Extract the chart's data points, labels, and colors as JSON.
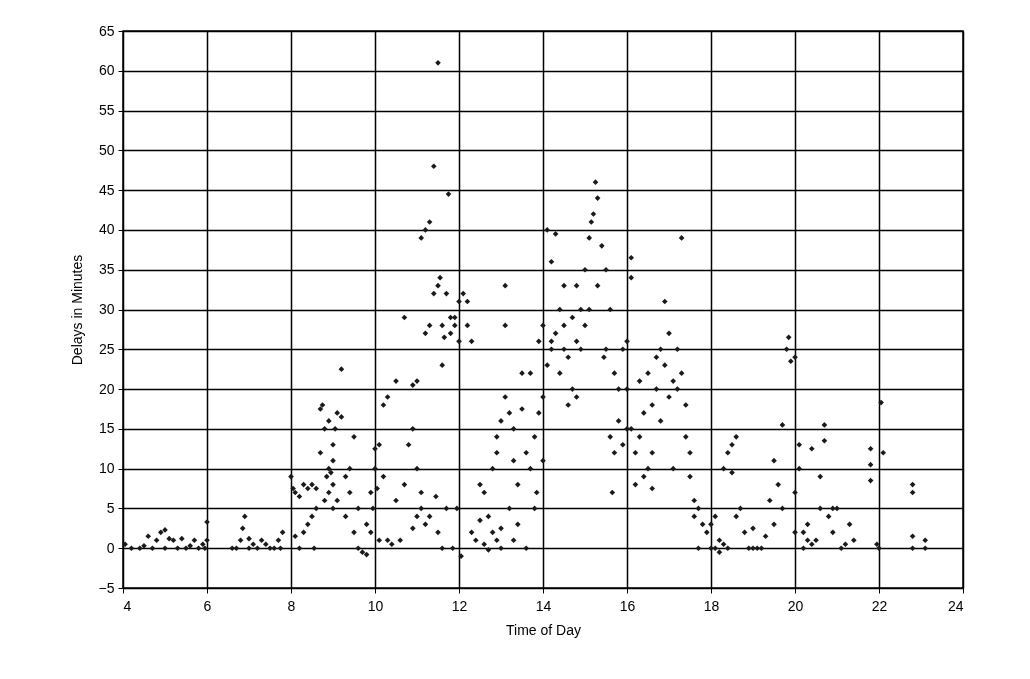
{
  "chart_data": {
    "type": "scatter",
    "xlabel": "Time of Day",
    "ylabel": "Delays in Minutes",
    "xlim": [
      4,
      24
    ],
    "xticks": [
      4,
      6,
      8,
      10,
      12,
      14,
      16,
      18,
      20,
      22,
      24
    ],
    "ylim": [
      -5,
      65
    ],
    "yticks": [
      -5,
      0,
      5,
      10,
      15,
      20,
      25,
      30,
      35,
      40,
      45,
      50,
      55,
      60,
      65
    ],
    "grid": true,
    "marker": "diamond",
    "series": [
      {
        "color": "#1a1a1a",
        "x": [
          4.05,
          4.2,
          4.4,
          4.5,
          4.6,
          4.7,
          4.8,
          4.9,
          5.0,
          5.0,
          5.1,
          5.2,
          5.3,
          5.4,
          5.5,
          5.6,
          5.7,
          5.8,
          5.9,
          6.0,
          6.0,
          5.95,
          6.7,
          6.8,
          6.85,
          6.9,
          7.0,
          7.1,
          7.2,
          7.3,
          7.4,
          7.5,
          7.6,
          7.7,
          7.8,
          7.75,
          6.6,
          7.0,
          8.0,
          8.05,
          8.1,
          8.1,
          8.2,
          8.2,
          8.3,
          8.3,
          8.4,
          8.4,
          8.5,
          8.5,
          8.55,
          8.6,
          8.6,
          8.7,
          8.75,
          8.7,
          8.8,
          8.8,
          8.85,
          8.9,
          8.9,
          8.9,
          9.0,
          9.0,
          9.0,
          9.05,
          9.1,
          9.1,
          9.2,
          9.2,
          9.3,
          9.3,
          9.4,
          9.4,
          9.5,
          9.5,
          9.6,
          9.6,
          9.7,
          9.8,
          9.8,
          9.9,
          9.9,
          10.0,
          10.0,
          10.05,
          10.1,
          9.95,
          9.0,
          8.95,
          10.2,
          10.2,
          10.3,
          10.3,
          10.4,
          10.5,
          10.5,
          10.6,
          10.7,
          10.7,
          10.8,
          10.9,
          10.9,
          11.0,
          11.0,
          11.1,
          11.1,
          11.2,
          11.2,
          11.3,
          11.3,
          11.4,
          11.4,
          11.45,
          11.5,
          11.5,
          11.5,
          11.55,
          11.6,
          11.6,
          11.65,
          11.7,
          11.7,
          11.75,
          11.8,
          11.8,
          11.85,
          11.9,
          11.9,
          11.95,
          12.0,
          12.0,
          12.05,
          12.1,
          12.2,
          12.2,
          12.3,
          12.3,
          11.2,
          11.3,
          10.1,
          10.9,
          11.0,
          11.1,
          11.6,
          12.4,
          12.5,
          12.5,
          12.6,
          12.6,
          12.7,
          12.7,
          12.8,
          12.8,
          12.9,
          12.9,
          13.0,
          13.0,
          13.1,
          13.1,
          13.1,
          13.2,
          13.2,
          13.3,
          13.3,
          13.4,
          13.4,
          13.5,
          13.5,
          13.6,
          13.6,
          13.7,
          13.7,
          13.8,
          13.8,
          13.9,
          13.9,
          14.0,
          14.0,
          14.0,
          13.85,
          13.0,
          12.9,
          13.3,
          14.1,
          14.1,
          14.2,
          14.2,
          14.3,
          14.3,
          14.4,
          14.4,
          14.5,
          14.5,
          14.6,
          14.6,
          14.7,
          14.7,
          14.8,
          14.8,
          14.9,
          14.9,
          15.0,
          15.0,
          15.1,
          15.1,
          15.15,
          15.2,
          15.25,
          15.3,
          15.3,
          15.4,
          15.45,
          15.5,
          15.6,
          15.6,
          15.65,
          15.7,
          15.7,
          15.8,
          15.8,
          15.9,
          15.9,
          16.0,
          16.0,
          15.5,
          14.5,
          14.2,
          14.8,
          16.1,
          16.1,
          16.1,
          16.2,
          16.2,
          16.3,
          16.3,
          16.4,
          16.4,
          16.5,
          16.5,
          16.6,
          16.6,
          16.7,
          16.7,
          16.8,
          16.8,
          16.9,
          16.9,
          17.0,
          17.0,
          17.1,
          17.1,
          17.2,
          17.2,
          17.3,
          17.3,
          17.4,
          17.4,
          17.5,
          17.5,
          17.6,
          17.6,
          17.7,
          17.7,
          17.8,
          17.9,
          18.0,
          16.6,
          16.0,
          18.1,
          18.1,
          18.2,
          18.2,
          18.3,
          18.3,
          18.4,
          18.5,
          18.5,
          18.6,
          18.6,
          18.7,
          18.8,
          18.9,
          19.0,
          19.1,
          19.2,
          19.3,
          19.4,
          19.5,
          19.5,
          19.6,
          19.7,
          19.7,
          19.8,
          19.85,
          19.9,
          20.0,
          20.0,
          20.0,
          18.4,
          18.0,
          19.0,
          20.1,
          20.1,
          20.2,
          20.2,
          20.3,
          20.4,
          20.4,
          20.5,
          20.6,
          20.6,
          20.7,
          20.7,
          20.8,
          20.9,
          20.9,
          21.0,
          21.1,
          21.2,
          21.3,
          21.4,
          21.8,
          21.8,
          21.8,
          22.0,
          22.05,
          22.1,
          21.95,
          20.3,
          22.8,
          22.8,
          22.8,
          23.1,
          23.1,
          22.8
        ],
        "values": [
          0.5,
          0,
          0,
          0.3,
          1.5,
          0,
          1,
          2,
          0,
          2.3,
          1.2,
          1,
          0,
          1.2,
          0,
          0.3,
          1,
          0,
          0.5,
          1,
          3.3,
          0,
          0,
          1,
          2.5,
          4,
          0,
          0.5,
          0,
          1,
          0.5,
          0,
          0,
          1,
          2,
          0,
          0,
          1.2,
          9,
          7.5,
          7,
          1.5,
          0,
          6.5,
          2,
          8,
          3,
          7.5,
          4,
          8,
          0,
          5,
          7.5,
          17.5,
          18,
          12,
          6,
          15,
          9,
          7,
          10,
          16,
          11,
          13,
          8,
          15,
          17,
          6,
          22.5,
          16.5,
          4,
          9,
          10,
          7,
          14,
          2,
          5,
          0,
          -0.5,
          3,
          -0.8,
          2,
          7,
          10,
          12.5,
          7.5,
          13,
          5,
          5,
          9.5,
          18,
          9,
          19,
          1,
          0.5,
          21,
          6,
          1,
          29,
          8,
          13,
          15,
          20.5,
          21,
          10,
          39,
          5,
          40,
          27,
          41,
          28,
          48,
          32,
          6.5,
          61,
          33,
          2,
          34,
          28,
          23,
          26.5,
          32,
          5,
          44.5,
          29,
          27,
          0,
          29,
          28,
          5,
          31,
          26,
          -1,
          32,
          31,
          28,
          26,
          2,
          3,
          4,
          1,
          2.5,
          4,
          7,
          0,
          1,
          3.5,
          8,
          7,
          0.5,
          4,
          -0.2,
          10,
          2,
          14,
          1,
          16,
          0,
          33,
          28,
          19,
          17,
          5,
          11,
          1,
          8,
          3,
          17.5,
          22,
          12,
          0,
          22,
          10,
          14,
          5,
          17,
          26,
          28,
          19,
          11,
          7,
          2.5,
          12,
          15,
          40,
          23,
          25,
          36,
          39.5,
          27,
          30,
          22,
          25,
          33,
          24,
          18,
          29,
          20,
          33,
          26,
          30,
          25,
          35,
          28,
          39,
          30,
          41,
          42,
          46,
          44,
          33,
          38,
          24,
          35,
          30,
          14,
          7,
          22,
          12,
          20,
          16,
          25,
          13,
          26,
          20,
          25,
          28,
          26,
          19,
          36.5,
          34,
          15,
          12,
          8,
          14,
          21,
          9,
          17,
          10,
          22,
          18,
          12,
          20,
          24,
          25,
          16,
          31,
          23,
          27,
          19,
          21,
          10,
          25,
          20,
          39,
          22,
          18,
          14,
          12,
          9,
          6,
          4,
          5,
          0,
          3,
          2,
          3,
          7.5,
          15,
          0,
          4,
          1,
          -0.5,
          0.5,
          10,
          12,
          13,
          9.5,
          4,
          14,
          5,
          2,
          0,
          0,
          0,
          0,
          1.5,
          6,
          3,
          11,
          8,
          5,
          15.5,
          25,
          26.5,
          23.5,
          24,
          7,
          2,
          0,
          0,
          2.5,
          13,
          10,
          2,
          0,
          3,
          12.5,
          0.5,
          1,
          9,
          5,
          13.5,
          15.5,
          4,
          5,
          2,
          5,
          0,
          0.5,
          3,
          1,
          12.5,
          10.5,
          8.5,
          0,
          18.3,
          12,
          0.5,
          1,
          1.5,
          8,
          7,
          1,
          0,
          0
        ]
      }
    ]
  }
}
